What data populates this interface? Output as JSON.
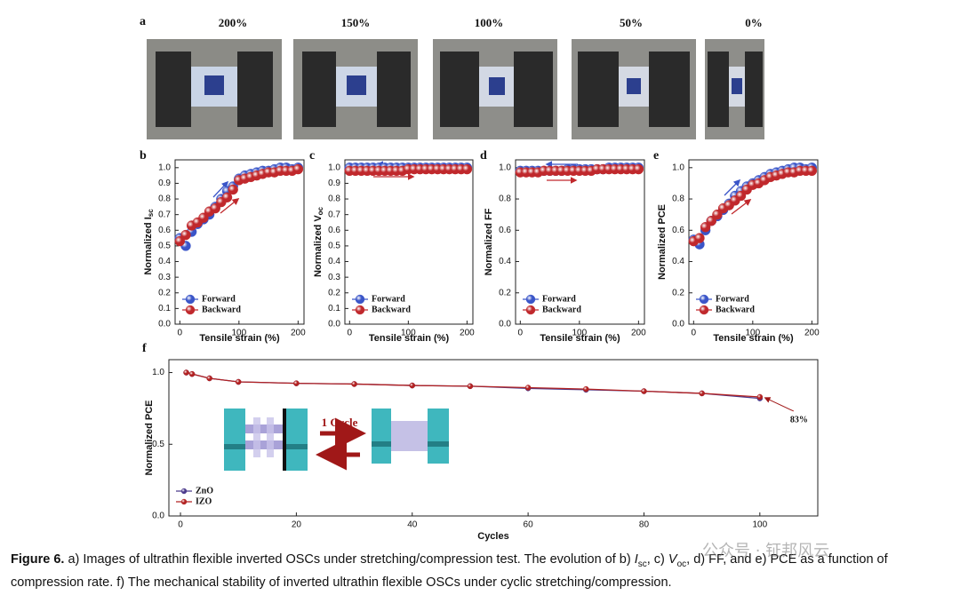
{
  "panel_a": {
    "label": "a",
    "images": [
      "200%",
      "150%",
      "100%",
      "50%",
      "0%"
    ]
  },
  "chart_data": [
    {
      "type": "scatter",
      "panel_label": "b",
      "xlabel": "Tensile strain (%)",
      "ylabel": "Normalized I",
      "ylabel_subscript": "sc",
      "x": [
        0,
        10,
        20,
        30,
        40,
        50,
        60,
        70,
        80,
        90,
        100,
        110,
        120,
        130,
        140,
        150,
        160,
        170,
        180,
        190,
        200
      ],
      "series": [
        {
          "name": "Forward",
          "color": "#3a55c8",
          "values": [
            0.55,
            0.5,
            0.59,
            0.64,
            0.67,
            0.7,
            0.75,
            0.8,
            0.85,
            0.88,
            0.93,
            0.95,
            0.96,
            0.97,
            0.98,
            0.98,
            0.99,
            1.0,
            1.0,
            0.99,
            1.0
          ]
        },
        {
          "name": "Backward",
          "color": "#c0282c",
          "values": [
            0.53,
            0.57,
            0.63,
            0.65,
            0.68,
            0.72,
            0.74,
            0.78,
            0.81,
            0.86,
            0.92,
            0.93,
            0.94,
            0.95,
            0.96,
            0.97,
            0.97,
            0.98,
            0.98,
            0.98,
            0.99
          ]
        }
      ],
      "xlim": [
        -8,
        210
      ],
      "ylim": [
        0,
        1.05
      ],
      "xticks": [
        0,
        100,
        200
      ],
      "yticks": [
        {
          "value": 0,
          "label": "0.0"
        },
        0.1,
        0.2,
        0.3,
        0.4,
        0.5,
        0.6,
        0.7,
        0.8,
        0.9,
        {
          "value": 1,
          "label": "1.0"
        }
      ],
      "legend": "lower left"
    },
    {
      "type": "scatter",
      "panel_label": "c",
      "xlabel": "Tensile strain (%)",
      "ylabel": "Normalized V",
      "ylabel_subscript": "oc",
      "x": [
        0,
        10,
        20,
        30,
        40,
        50,
        60,
        70,
        80,
        90,
        100,
        110,
        120,
        130,
        140,
        150,
        160,
        170,
        180,
        190,
        200
      ],
      "series": [
        {
          "name": "Forward",
          "color": "#3a55c8",
          "values": [
            1.0,
            1.0,
            1.0,
            1.0,
            1.0,
            1.0,
            1.0,
            1.0,
            1.0,
            1.0,
            1.0,
            1.0,
            1.0,
            1.0,
            1.0,
            1.0,
            1.0,
            1.0,
            1.0,
            1.0,
            1.0
          ]
        },
        {
          "name": "Backward",
          "color": "#c0282c",
          "values": [
            0.98,
            0.98,
            0.98,
            0.98,
            0.98,
            0.98,
            0.98,
            0.98,
            0.98,
            0.98,
            0.99,
            0.99,
            0.99,
            0.99,
            0.99,
            0.99,
            0.99,
            0.99,
            0.99,
            0.99,
            0.99
          ]
        }
      ],
      "xlim": [
        -8,
        210
      ],
      "ylim": [
        0,
        1.05
      ],
      "xticks": [
        0,
        100,
        200
      ],
      "yticks": [
        {
          "value": 0,
          "label": "0.0"
        },
        0.1,
        0.2,
        0.3,
        0.4,
        0.5,
        0.6,
        0.7,
        0.8,
        0.9,
        {
          "value": 1,
          "label": "1.0"
        }
      ],
      "legend": "lower left"
    },
    {
      "type": "scatter",
      "panel_label": "d",
      "xlabel": "Tensile strain (%)",
      "ylabel": "Normalized FF",
      "x": [
        0,
        10,
        20,
        30,
        40,
        50,
        60,
        70,
        80,
        90,
        100,
        110,
        120,
        130,
        140,
        150,
        160,
        170,
        180,
        190,
        200
      ],
      "series": [
        {
          "name": "Forward",
          "color": "#3a55c8",
          "values": [
            0.98,
            0.98,
            0.98,
            0.98,
            0.98,
            0.98,
            0.98,
            0.98,
            0.99,
            0.99,
            0.99,
            0.99,
            0.99,
            0.99,
            0.99,
            1.0,
            1.0,
            1.0,
            1.0,
            1.0,
            1.0
          ]
        },
        {
          "name": "Backward",
          "color": "#c0282c",
          "values": [
            0.97,
            0.97,
            0.97,
            0.97,
            0.98,
            0.98,
            0.98,
            0.98,
            0.98,
            0.98,
            0.98,
            0.98,
            0.98,
            0.99,
            0.99,
            0.99,
            0.99,
            0.99,
            0.99,
            0.99,
            0.99
          ]
        }
      ],
      "xlim": [
        -8,
        210
      ],
      "ylim": [
        0,
        1.05
      ],
      "xticks": [
        0,
        100,
        200
      ],
      "yticks": [
        {
          "value": 0,
          "label": "0.0"
        },
        0.2,
        0.4,
        0.6,
        0.8,
        {
          "value": 1,
          "label": "1.0"
        }
      ],
      "legend": "lower left"
    },
    {
      "type": "scatter",
      "panel_label": "e",
      "xlabel": "Tensile strain (%)",
      "ylabel": "Normalized PCE",
      "x": [
        0,
        10,
        20,
        30,
        40,
        50,
        60,
        70,
        80,
        90,
        100,
        110,
        120,
        130,
        140,
        150,
        160,
        170,
        180,
        190,
        200
      ],
      "series": [
        {
          "name": "Forward",
          "color": "#3a55c8",
          "values": [
            0.54,
            0.51,
            0.6,
            0.66,
            0.69,
            0.73,
            0.77,
            0.82,
            0.85,
            0.88,
            0.9,
            0.92,
            0.94,
            0.96,
            0.97,
            0.98,
            0.99,
            1.0,
            1.0,
            0.99,
            1.0
          ]
        },
        {
          "name": "Backward",
          "color": "#c0282c",
          "values": [
            0.53,
            0.55,
            0.62,
            0.66,
            0.7,
            0.74,
            0.76,
            0.79,
            0.82,
            0.86,
            0.89,
            0.9,
            0.92,
            0.94,
            0.95,
            0.96,
            0.97,
            0.97,
            0.98,
            0.98,
            0.98
          ]
        }
      ],
      "xlim": [
        -8,
        210
      ],
      "ylim": [
        0,
        1.05
      ],
      "xticks": [
        0,
        100,
        200
      ],
      "yticks": [
        {
          "value": 0,
          "label": "0.0"
        },
        0.2,
        0.4,
        0.6,
        0.8,
        {
          "value": 1,
          "label": "1.0"
        }
      ],
      "legend": "lower left"
    },
    {
      "type": "line",
      "panel_label": "f",
      "xlabel": "Cycles",
      "ylabel": "Normalized PCE",
      "x": [
        1,
        2,
        5,
        10,
        20,
        30,
        40,
        50,
        60,
        70,
        80,
        90,
        100
      ],
      "series": [
        {
          "name": "ZnO",
          "color": "#4b3a8c",
          "values": [
            1.0,
            0.99,
            0.96,
            0.935,
            0.925,
            0.92,
            0.91,
            0.905,
            0.89,
            0.88,
            0.87,
            0.855,
            0.82
          ]
        },
        {
          "name": "IZO",
          "color": "#b22222",
          "values": [
            1.0,
            0.99,
            0.96,
            0.935,
            0.925,
            0.92,
            0.91,
            0.905,
            0.895,
            0.885,
            0.87,
            0.855,
            0.83
          ]
        }
      ],
      "xlim": [
        -2,
        110
      ],
      "ylim": [
        0,
        1.09
      ],
      "xticks": [
        0,
        20,
        40,
        60,
        80,
        100
      ],
      "yticks": [
        {
          "value": 0,
          "label": "0.0"
        },
        0.5,
        {
          "value": 1,
          "label": "1.0"
        }
      ],
      "legend": "lower left",
      "annotation": "83%",
      "inset_label": "1 Cycle"
    }
  ],
  "caption": {
    "figure_label": "Figure 6.",
    "parts": [
      " a) Images of ultrathin flexible inverted OSCs under stretching/compression test. The evolution of b) ",
      "I",
      "sc",
      ", c) ",
      "V",
      "oc",
      ", d) FF, and e) PCE as a function of compression rate. f) The mechanical stability of inverted ultrathin flexible OSCs under cyclic stretching/compression."
    ]
  },
  "watermark": "公众号 · 钲邦风云"
}
